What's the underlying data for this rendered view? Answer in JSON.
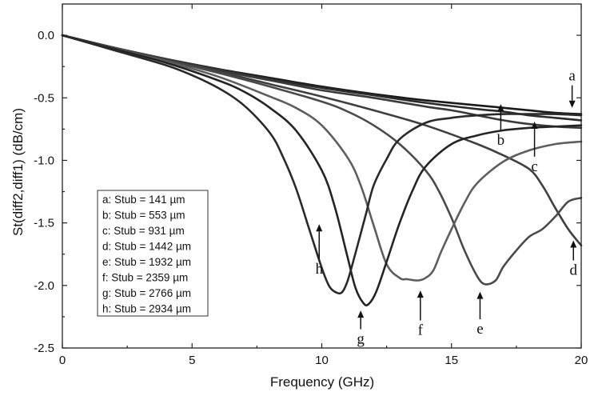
{
  "chart_data": {
    "type": "line",
    "xlabel": "Frequency (GHz)",
    "ylabel": "St(diff2,diff1) (dB/cm)",
    "xlim": [
      0,
      20
    ],
    "ylim": [
      -2.5,
      0.25
    ],
    "xticks": [
      0,
      5,
      10,
      15,
      20
    ],
    "yticks": [
      0.0,
      -0.5,
      -1.0,
      -1.5,
      -2.0,
      -2.5
    ],
    "xtick_labels": [
      "0",
      "5",
      "10",
      "15",
      "20"
    ],
    "ytick_labels": [
      "0.0",
      "-0.5",
      "-1.0",
      "-1.5",
      "-2.0",
      "-2.5"
    ],
    "grid": false,
    "legend_position": "lower-left",
    "series": [
      {
        "name": "a",
        "legend": "a: Stub = 141 µm",
        "color": "#1a1a1a",
        "x": [
          0,
          2,
          4,
          6,
          8,
          10,
          12,
          14,
          16,
          18,
          19,
          20
        ],
        "y": [
          0,
          -0.1,
          -0.19,
          -0.27,
          -0.34,
          -0.41,
          -0.47,
          -0.52,
          -0.56,
          -0.6,
          -0.62,
          -0.63
        ]
      },
      {
        "name": "b",
        "legend": "b: Stub = 553 µm",
        "color": "#2b2b2b",
        "x": [
          0,
          2,
          4,
          6,
          8,
          10,
          12,
          14,
          16,
          17,
          18,
          19,
          20
        ],
        "y": [
          0,
          -0.1,
          -0.19,
          -0.27,
          -0.35,
          -0.42,
          -0.48,
          -0.54,
          -0.59,
          -0.61,
          -0.64,
          -0.66,
          -0.68
        ]
      },
      {
        "name": "c",
        "legend": "c: Stub = 931 µm",
        "color": "#3a3a3a",
        "x": [
          0,
          2,
          4,
          6,
          8,
          10,
          12,
          14,
          15,
          16,
          17,
          18,
          19,
          20
        ],
        "y": [
          0,
          -0.1,
          -0.19,
          -0.28,
          -0.36,
          -0.44,
          -0.5,
          -0.57,
          -0.6,
          -0.64,
          -0.68,
          -0.71,
          -0.73,
          -0.74
        ]
      },
      {
        "name": "d",
        "legend": "d: Stub = 1442 µm",
        "color": "#3f3f3f",
        "x": [
          0,
          2,
          4,
          6,
          8,
          10,
          12,
          14,
          16,
          17,
          18,
          18.5,
          19,
          19.5,
          20
        ],
        "y": [
          0,
          -0.1,
          -0.2,
          -0.29,
          -0.39,
          -0.49,
          -0.6,
          -0.72,
          -0.87,
          -0.96,
          -1.07,
          -1.2,
          -1.38,
          -1.55,
          -1.68
        ]
      },
      {
        "name": "e",
        "legend": "e: Stub = 1932 µm",
        "color": "#4a4a4a",
        "x": [
          0,
          2,
          4,
          6,
          8,
          10,
          11,
          12,
          13,
          14,
          14.5,
          15,
          15.5,
          16,
          16.3,
          16.7,
          17,
          17.5,
          18,
          18.5,
          19,
          19.5,
          20
        ],
        "y": [
          0,
          -0.1,
          -0.2,
          -0.3,
          -0.41,
          -0.53,
          -0.61,
          -0.72,
          -0.87,
          -1.08,
          -1.24,
          -1.46,
          -1.72,
          -1.93,
          -1.99,
          -1.96,
          -1.85,
          -1.72,
          -1.61,
          -1.55,
          -1.45,
          -1.33,
          -1.3
        ]
      },
      {
        "name": "f",
        "legend": "f: Stub = 2359 µm",
        "color": "#5e5e5e",
        "x": [
          0,
          2,
          4,
          6,
          8,
          9,
          10,
          11,
          11.5,
          12,
          12.5,
          13,
          13.3,
          13.7,
          14,
          14.3,
          14.6,
          15,
          15.5,
          16,
          17,
          18,
          19,
          20
        ],
        "y": [
          0,
          -0.11,
          -0.21,
          -0.33,
          -0.49,
          -0.58,
          -0.72,
          -0.98,
          -1.2,
          -1.52,
          -1.83,
          -1.94,
          -1.95,
          -1.96,
          -1.94,
          -1.88,
          -1.73,
          -1.55,
          -1.34,
          -1.18,
          -1.01,
          -0.92,
          -0.87,
          -0.85
        ]
      },
      {
        "name": "g",
        "legend": "g: Stub = 2766 µm",
        "color": "#242424",
        "x": [
          0,
          2,
          4,
          6,
          7,
          8,
          9,
          10,
          10.5,
          11,
          11.3,
          11.6,
          11.8,
          12.1,
          12.5,
          13,
          13.5,
          14,
          15,
          16,
          17,
          18,
          19,
          20
        ],
        "y": [
          0,
          -0.11,
          -0.22,
          -0.36,
          -0.45,
          -0.58,
          -0.76,
          -1.08,
          -1.37,
          -1.78,
          -2.02,
          -2.14,
          -2.15,
          -2.05,
          -1.81,
          -1.5,
          -1.24,
          -1.05,
          -0.87,
          -0.8,
          -0.76,
          -0.74,
          -0.73,
          -0.72
        ]
      },
      {
        "name": "h",
        "legend": "h: Stub = 2934 µm",
        "color": "#2a2a2a",
        "x": [
          0,
          2,
          4,
          5,
          6,
          7,
          8,
          8.5,
          9,
          9.5,
          10,
          10.3,
          10.6,
          10.8,
          11,
          11.3,
          11.7,
          12,
          12.5,
          13,
          14,
          15,
          16,
          17,
          18,
          19,
          20
        ],
        "y": [
          0,
          -0.12,
          -0.24,
          -0.32,
          -0.42,
          -0.56,
          -0.78,
          -0.97,
          -1.22,
          -1.54,
          -1.86,
          -2.01,
          -2.06,
          -2.05,
          -1.96,
          -1.74,
          -1.43,
          -1.2,
          -0.99,
          -0.83,
          -0.7,
          -0.66,
          -0.64,
          -0.63,
          -0.63,
          -0.63,
          -0.64
        ]
      }
    ],
    "annotations": [
      {
        "label": "a",
        "x": 19.65,
        "y_tip": -0.58,
        "y_tail": -0.4,
        "side": "above"
      },
      {
        "label": "b",
        "x": 16.9,
        "y_tip": -0.55,
        "y_tail": -0.76,
        "side": "below"
      },
      {
        "label": "c",
        "x": 18.2,
        "y_tip": -0.69,
        "y_tail": -0.97,
        "side": "below"
      },
      {
        "label": "d",
        "x": 19.7,
        "y_tip": -1.64,
        "y_tail": -1.8,
        "side": "below"
      },
      {
        "label": "e",
        "x": 16.1,
        "y_tip": -2.05,
        "y_tail": -2.27,
        "side": "below"
      },
      {
        "label": "f",
        "x": 13.8,
        "y_tip": -2.04,
        "y_tail": -2.28,
        "side": "below"
      },
      {
        "label": "g",
        "x": 11.5,
        "y_tip": -2.2,
        "y_tail": -2.35,
        "side": "below"
      },
      {
        "label": "h",
        "x": 9.9,
        "y_tip": -1.51,
        "y_tail": -1.79,
        "side": "below"
      }
    ]
  }
}
